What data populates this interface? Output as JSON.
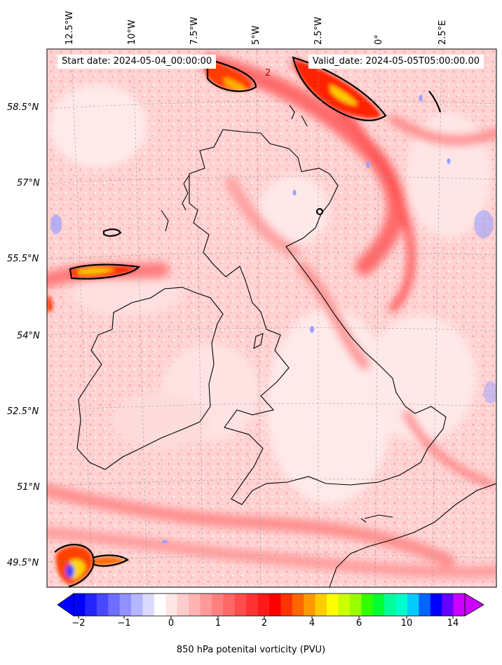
{
  "map": {
    "start_date": "Start date: 2024-05-04_00:00:00",
    "valid_date": "Valid_date: 2024-05-05T05:00:00.00",
    "lon_labels": [
      "12.5°W",
      "10°W",
      "7.5°W",
      "5°W",
      "2.5°W",
      "0°",
      "2.5°E"
    ],
    "lat_labels": [
      "58.5°N",
      "57°N",
      "55.5°N",
      "54°N",
      "52.5°N",
      "51°N",
      "49.5°N"
    ],
    "contour_label": "2",
    "gridlines": true
  },
  "colorbar": {
    "label": "850 hPa potenital vorticity (PVU)",
    "ticks": [
      "−2",
      "−1",
      "0",
      "1",
      "2",
      "4",
      "6",
      "10",
      "14"
    ],
    "extend": "both",
    "colors": [
      "#0000ff",
      "#2424ff",
      "#4848ff",
      "#6d6dff",
      "#9191ff",
      "#b6b6ff",
      "#dadaff",
      "#ffffff",
      "#ffe6e6",
      "#ffcccc",
      "#ffb3b3",
      "#ff9999",
      "#ff8080",
      "#ff6666",
      "#ff4d4d",
      "#ff3333",
      "#ff1a1a",
      "#ff0000",
      "#ff3300",
      "#ff6600",
      "#ff9900",
      "#ffcc00",
      "#ffff00",
      "#ccff00",
      "#99ff00",
      "#33ff00",
      "#00ff33",
      "#00ff99",
      "#00ffcc",
      "#00ccff",
      "#0066ff",
      "#0000ff",
      "#6600ff",
      "#cc00ff"
    ]
  },
  "colors": {
    "background_field": "#ffd6d6",
    "strong_field": "#ff2b2b",
    "coast": "#000000"
  }
}
